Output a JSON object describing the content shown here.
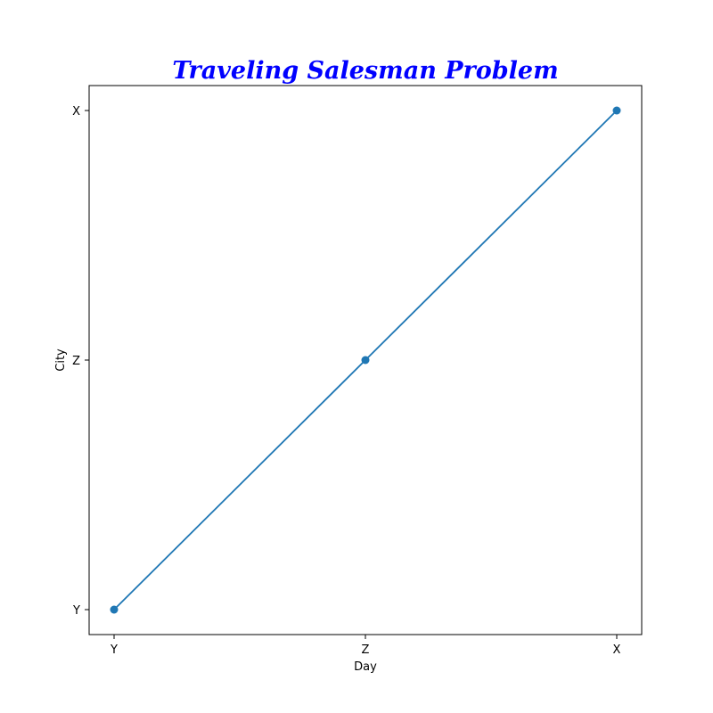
{
  "chart_data": {
    "type": "line",
    "title": "Traveling Salesman Problem",
    "xlabel": "Day",
    "ylabel": "City",
    "x_categories": [
      "Y",
      "Z",
      "X"
    ],
    "y_categories": [
      "Y",
      "Z",
      "X"
    ],
    "series": [
      {
        "x": [
          "Y",
          "Z",
          "X"
        ],
        "y": [
          "Y",
          "Z",
          "X"
        ],
        "marker": "circle"
      }
    ],
    "grid": false,
    "legend": "none"
  },
  "colors": {
    "title": "#0000ff",
    "line": "#1f77b4",
    "axes": "#000000"
  }
}
